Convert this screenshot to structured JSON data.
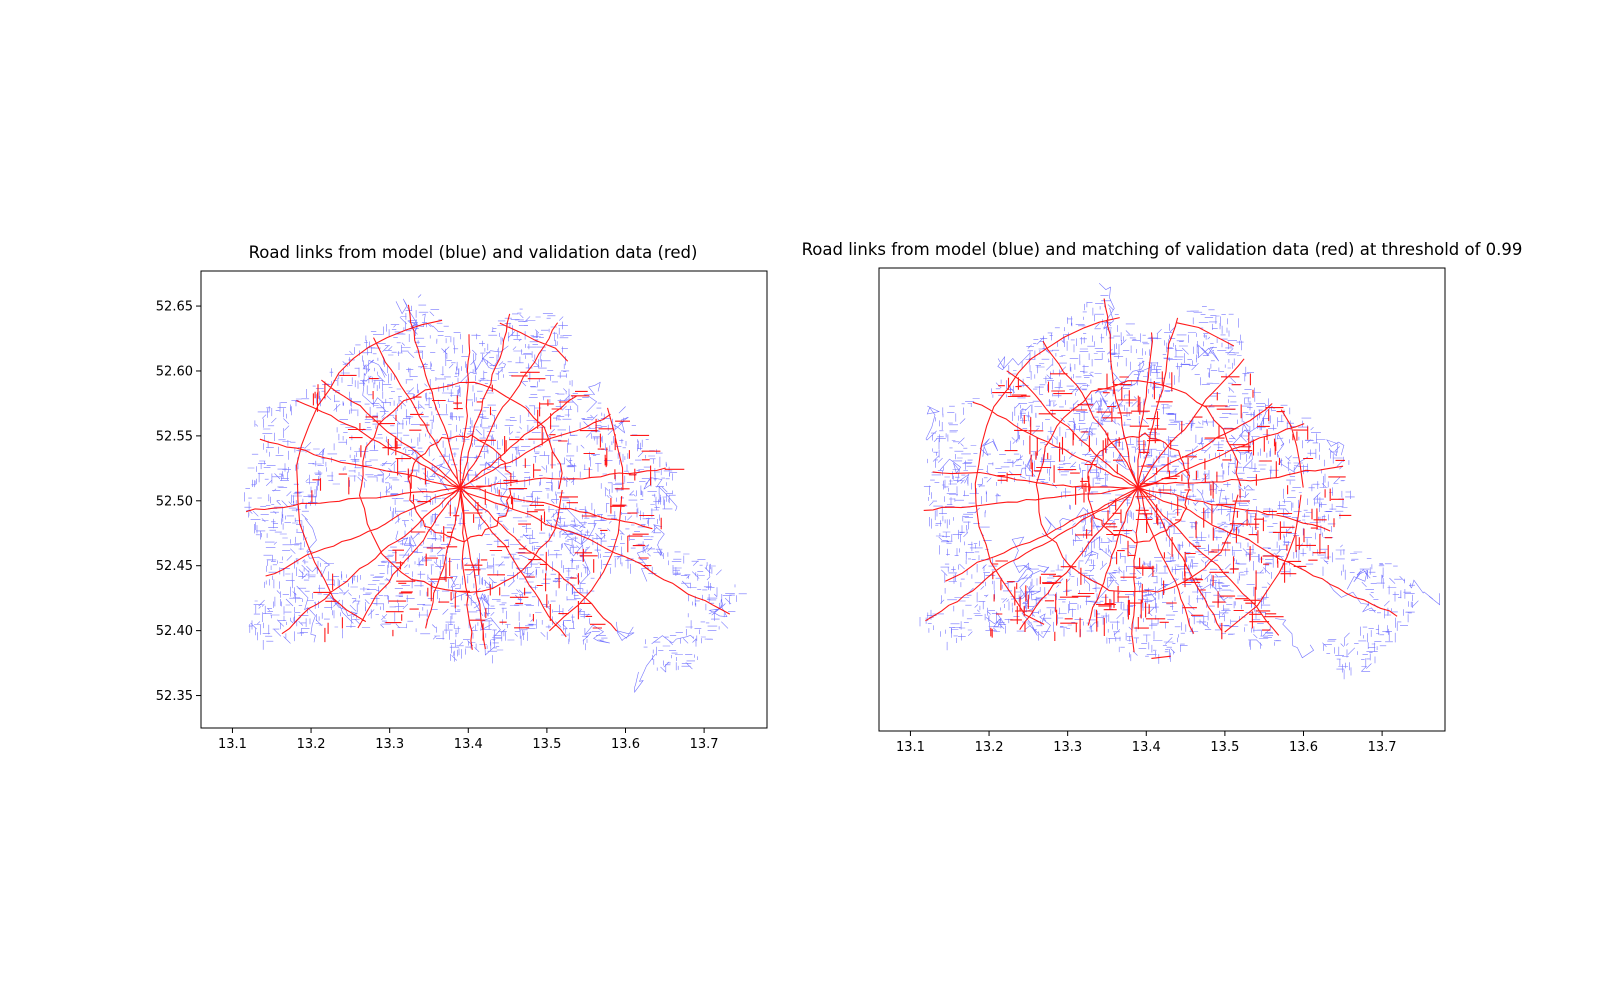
{
  "chart_data": [
    {
      "type": "map",
      "title": "Road links from model (blue) and validation data (red)",
      "xlabel": "",
      "ylabel": "",
      "xlim": [
        13.06,
        13.78
      ],
      "ylim": [
        52.325,
        52.677
      ],
      "x_ticks": [
        "13.1",
        "13.2",
        "13.3",
        "13.4",
        "13.5",
        "13.6",
        "13.7"
      ],
      "y_ticks": [
        "52.35",
        "52.40",
        "52.45",
        "52.50",
        "52.55",
        "52.60",
        "52.65"
      ],
      "show_y_ticks": true,
      "series": [
        {
          "color": "#0000ff",
          "layer": "model road links"
        },
        {
          "color": "#ff0000",
          "layer": "validation data road links"
        }
      ]
    },
    {
      "type": "map",
      "title": "Road links from model (blue) and matching of validation data (red) at threshold of 0.99",
      "xlabel": "",
      "ylabel": "",
      "xlim": [
        13.06,
        13.78
      ],
      "ylim": [
        52.325,
        52.677
      ],
      "x_ticks": [
        "13.1",
        "13.2",
        "13.3",
        "13.4",
        "13.5",
        "13.6",
        "13.7"
      ],
      "y_ticks": [],
      "show_y_ticks": false,
      "series": [
        {
          "color": "#0000ff",
          "layer": "model road links"
        },
        {
          "color": "#ff0000",
          "layer": "matched validation data"
        }
      ]
    }
  ]
}
